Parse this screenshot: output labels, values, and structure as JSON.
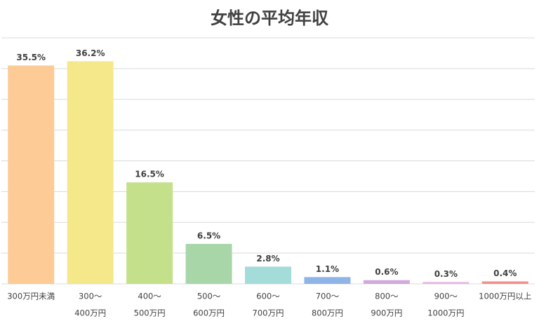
{
  "chart_data": {
    "type": "bar",
    "title": "女性の平均年収",
    "categories": [
      [
        "300万円未満"
      ],
      [
        "300～",
        "400万円"
      ],
      [
        "400～",
        "500万円"
      ],
      [
        "500～",
        "600万円"
      ],
      [
        "600～",
        "700万円"
      ],
      [
        "700～",
        "800万円"
      ],
      [
        "800～",
        "900万円"
      ],
      [
        "900～",
        "1000万円"
      ],
      [
        "1000万円以上"
      ]
    ],
    "values": [
      35.5,
      36.2,
      16.5,
      6.5,
      2.8,
      1.1,
      0.6,
      0.3,
      0.4
    ],
    "value_labels": [
      "35.5%",
      "36.2%",
      "16.5%",
      "6.5%",
      "2.8%",
      "1.1%",
      "0.6%",
      "0.3%",
      "0.4%"
    ],
    "colors": [
      "#fccb96",
      "#f5e88a",
      "#c5e08a",
      "#a8d6a8",
      "#a3dcd8",
      "#8fb4e8",
      "#d3a8dc",
      "#e8b4e4",
      "#f0908c"
    ],
    "ylim": [
      0,
      40
    ],
    "yticks": [
      0,
      5,
      10,
      15,
      20,
      25,
      30,
      35,
      40
    ],
    "grid": true
  }
}
